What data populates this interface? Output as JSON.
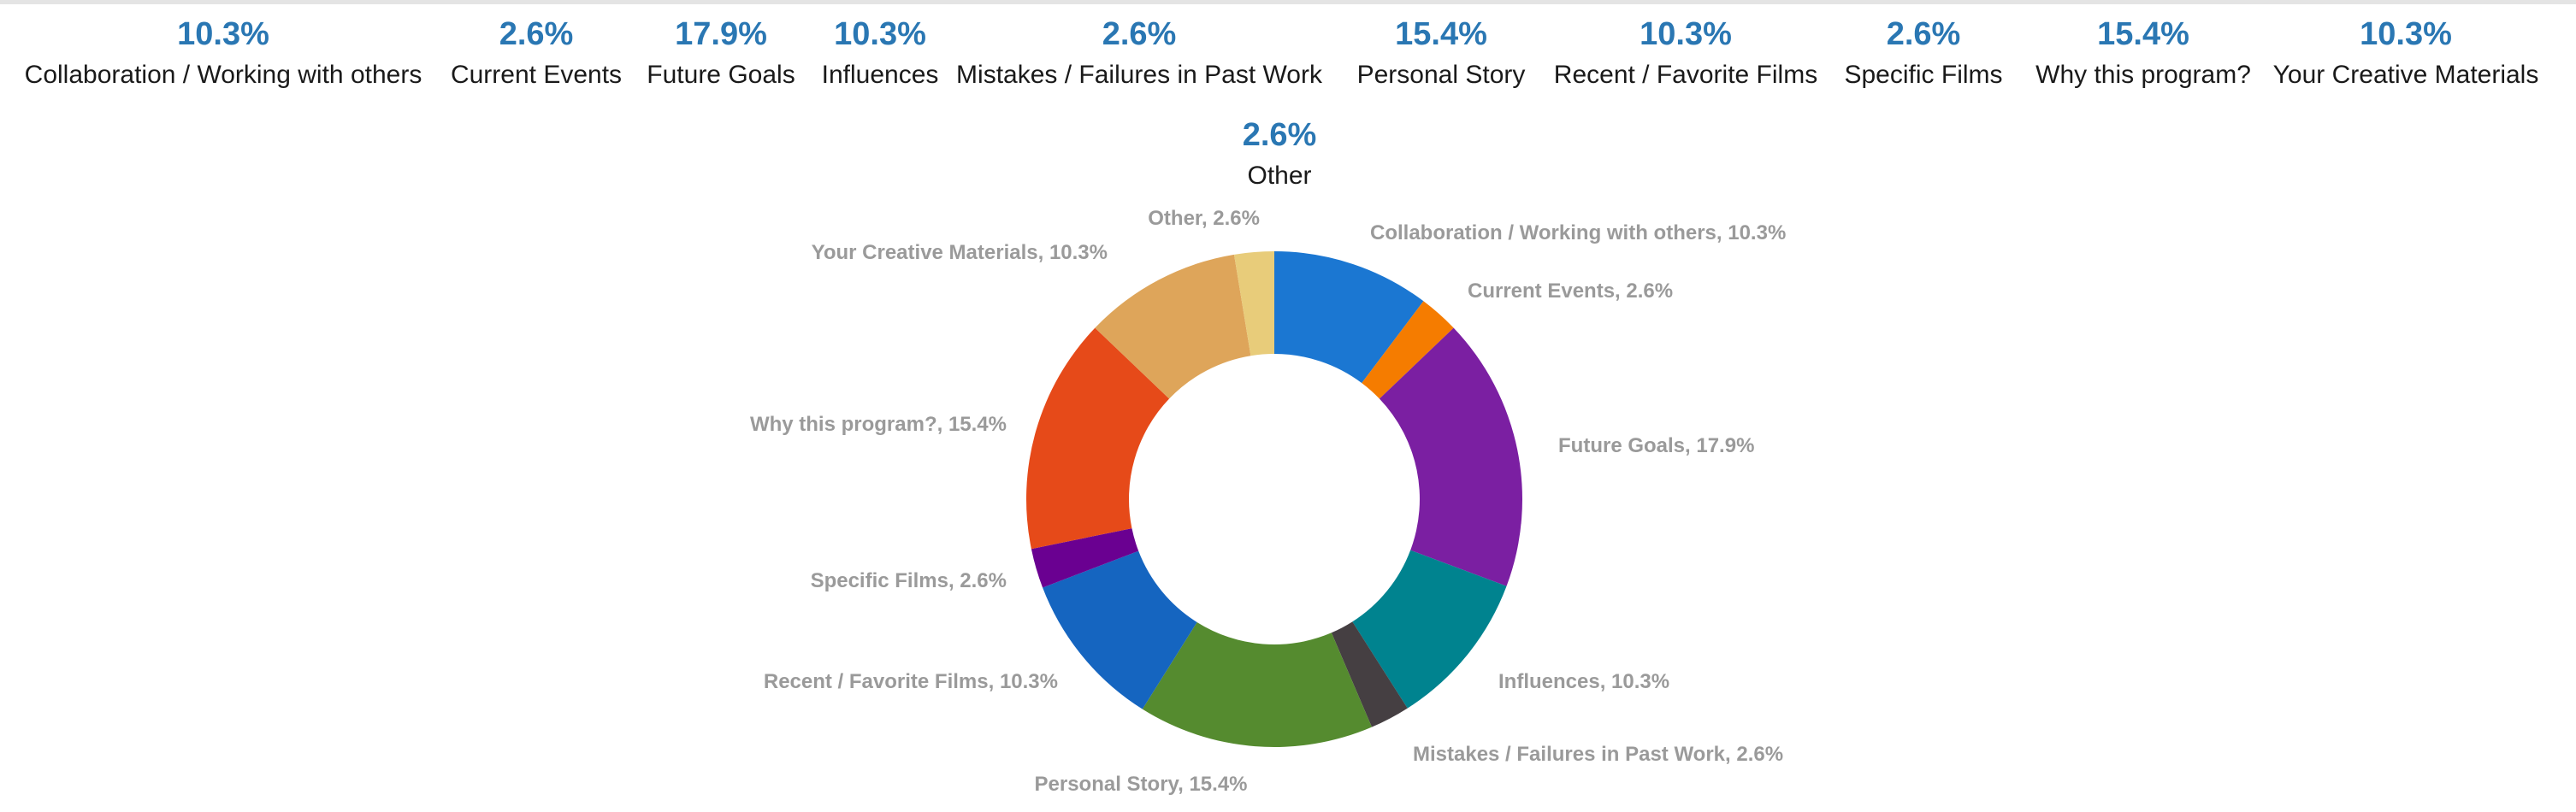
{
  "chart_data": {
    "type": "pie",
    "donut": true,
    "categories": [
      "Collaboration / Working with others",
      "Current Events",
      "Future Goals",
      "Influences",
      "Mistakes / Failures in Past Work",
      "Personal Story",
      "Recent / Favorite Films",
      "Specific Films",
      "Why this program?",
      "Your Creative Materials",
      "Other"
    ],
    "values": [
      10.3,
      2.6,
      17.9,
      10.3,
      2.6,
      15.4,
      10.3,
      2.6,
      15.4,
      10.3,
      2.6
    ],
    "value_labels": [
      "10.3%",
      "2.6%",
      "17.9%",
      "10.3%",
      "2.6%",
      "15.4%",
      "10.3%",
      "2.6%",
      "15.4%",
      "10.3%",
      "2.6%"
    ],
    "slice_labels": [
      "Collaboration / Working with others, 10.3%",
      "Current Events, 2.6%",
      "Future Goals, 17.9%",
      "Influences, 10.3%",
      "Mistakes / Failures in Past Work, 2.6%",
      "Personal Story, 15.4%",
      "Recent / Favorite Films, 10.3%",
      "Specific Films, 2.6%",
      "Why this program?, 15.4%",
      "Your Creative Materials, 10.3%",
      "Other, 2.6%"
    ],
    "colors": [
      "#1b77d2",
      "#f57c00",
      "#7b1fa2",
      "#00838f",
      "#453f42",
      "#558b2f",
      "#1565c0",
      "#6a0091",
      "#e64a19",
      "#dea55a",
      "#e8cc7a"
    ],
    "legend_placement": "top",
    "header_color": "#2a77b3"
  }
}
